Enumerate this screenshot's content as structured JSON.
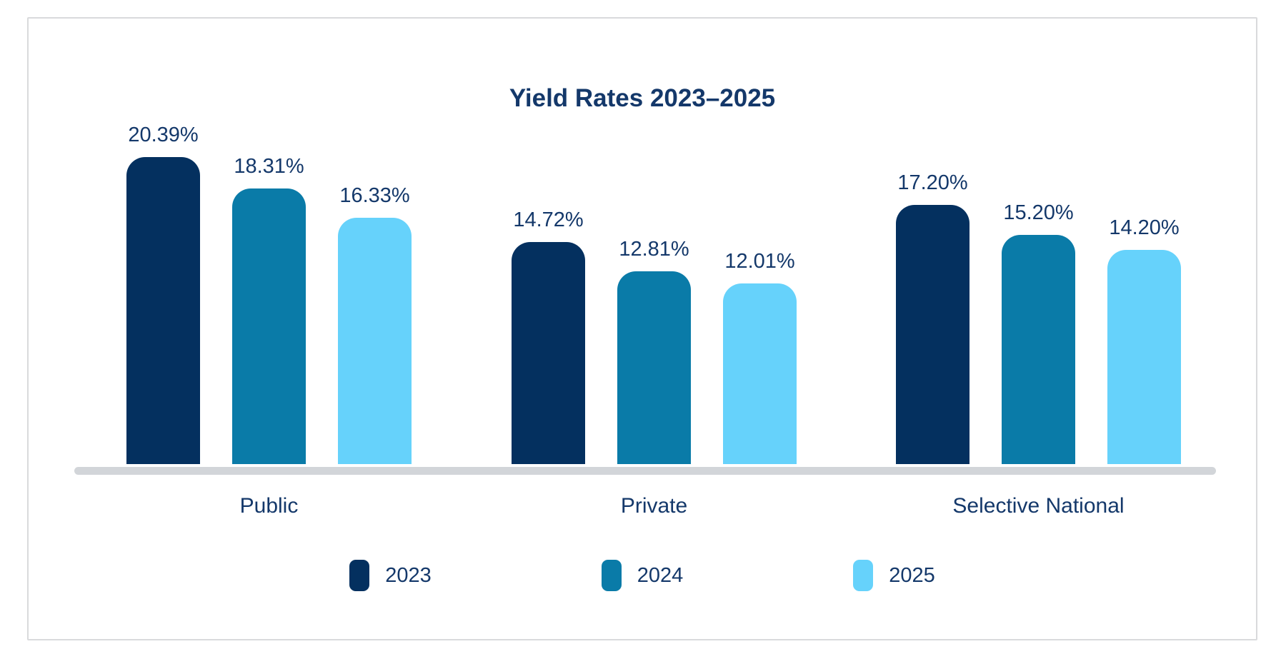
{
  "chart": {
    "title": "Yield Rates 2023–2025"
  },
  "chart_data": {
    "type": "bar",
    "title": "Yield Rates 2023–2025",
    "categories": [
      "Public",
      "Private",
      "Selective National"
    ],
    "series": [
      {
        "name": "2023",
        "color": "#04305f",
        "values": [
          20.39,
          14.72,
          17.2
        ]
      },
      {
        "name": "2024",
        "color": "#0a7ba8",
        "values": [
          18.31,
          12.81,
          15.2
        ]
      },
      {
        "name": "2025",
        "color": "#66d2fb",
        "values": [
          16.33,
          12.01,
          14.2
        ]
      }
    ],
    "data_labels": {
      "visible": true,
      "format": "0.00%"
    },
    "xlabel": "",
    "ylabel": "",
    "ylim": [
      0,
      22
    ],
    "grid": false,
    "y_axis_visible": false,
    "legend_position": "bottom",
    "baseline_color": "#d2d5d9",
    "text_color": "#14386a"
  }
}
